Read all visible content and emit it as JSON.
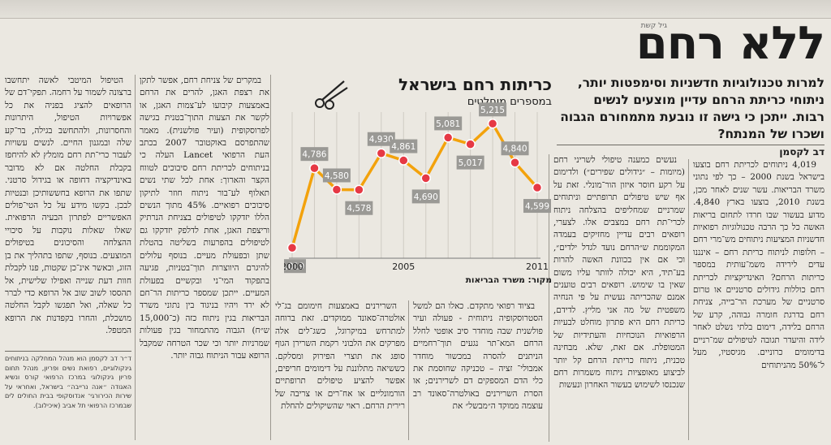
{
  "article": {
    "kicker": "גיל קשת",
    "headline": "ללא רחם",
    "deck": "למרות טכנולוגיות חדשניות וסימפטות יותר, ניתוחי כריתת הרחם עדיין מוצעים לנשים רבות. ייתכן כי גישה זו נובעת מתמחורם הגבוה ושכרו של המנתח?",
    "byline": "דב לקסמן",
    "columns": [
      "4,019 ניתוחים לכריתת רחם בוצעו בישראל בשנת 2000 – כך לפי נתוני משרד הבריאות. עשר שנים לאחר מכן, בשנת 2010, בוצעו בארץ 4,840. מדוע בעשור שבו חרדו לתחום בריאות האשה כל כך הרבה טכנולוגיות רפואיות חדשניות המציעות ניתוחים מש־מרי רחם – חלופות לניתוח כריתת רחם – אינננו עדים לירידה משמ־עותית במספר כריתות הרחם? האינדיקציות לכריתת רחם כוללות גידולים סרטניים או טרום סרטניים של מערכת הר־בייה, צניחת רחם בדרגת חומרה גבוהה, קרע של הרחם בלידה, דימום בלתי נשלט לאחר לידה והיעדר תגובה לטיפולים שמ־רניים בדימומים כרוניים. מגיסטיו, מעל ל־50% מהניתוחים",
      "נעשים כמענה טיפולי לשריני רחם (מיומות – ״גידולים שפירים״) ולדימום על רקע חוסר איזון הור־מונלי. זאת על אף שיש טיפולים תרופתיים וניתוחים שמרניים שמחליפים בהצלחה ניתוח לכרי־תת רחם במצבים אלו. לצערי, רופאים רבים עדיין מחזיקים בעמדה המקוממת ש״הרחם נועד לגדל ילדים״, וכי אם אין בכוונת האשה להרות בע־תיד, היא יכולה לוותר עליו משום שאין בו שימוש. רופאים רבים טוענים אמנם שהכריתה נעשית על פי הנחיה משפטית של מה אני מליץ. לדידם, כריתת רחם היא פתרון מוחלט לבעיות הרפואיות הנוכחיות והעתידיות של המטופלת. אם זאת, שלא. מבחינה טכנית, ניתוח כריתת הרחם קל יותר לביצוע מאופציות ניתוח משמרות רחם שנכנסו לשימוש בעשור האחרון ונעשות",
      "בציוד רפואי מתקדם. כאלו הם למשל הסטרוסקופיה ניתוחית - פעולה ועיר פולשנית שבה מוחדר סיב אופטי לחלל הרחם המא־תר נגעים תוך־רחמיים הניתנים להסרה במכשור מוחדר אמבולי־ זציה – טכניקה שחוסמת את כלי הדם המספקים דם לשרירנים; או הסרת השרירנים באולטרה־סאונד רב עוצמה ממוקד ה״מבשל״ את",
      "השרירנים באמצעות חימומם בג־לי אולטרה־סאונד ממוקדים. זאת ברוחה למתרחש במיקרוגל, כשג־לים אלה מפרקים את הלבוני רקמת השרירן הגוף סופג את תוצרי הפירוק ומסלקם. כששיאה מתלוננת על דימומים חריפים, אפשר להציע טיפולים תרופתיים הורמונליים או אח־רים או צריבה של רירית הרחם. ראוי שהשיקולים להחלת"
    ],
    "columns2": [
      "במקרים של צניחת רחם, אפשר לתקן את רצפת האגן, להרים את הרחם באמצעות קיבועו לע־צמות האגן, או לקשר את הצעות התוך־בטנית בגישה לפרוסקופית (ועיר פולשנית). מאמר שהתפרסם באוקטובר 2007 בכתב העת הרפואי Lancet העלה כי בניתוחים לכריתת רחם סיבוכים לטווח הקצר והארוך: אחת לכל שתי נשים תאלוף לע־בור ניתוח חוזר לתיקון סיבוכים רפואיים. 45% מתוך הנשים הללו יזדקקו לטיפולים בצניחת הנרתיק וריצפת האגן, אחת לדלפק יזדקקו גם לטיפולים בהפרעות בשליטה בהטלת שתן ובפעולת מעיים. בנוסף עלולים להיגרם היווצרות תוך־בטניות, פגיעה בתפקוד המי־ני ובקשיים בפעולת המעיים. ייתכן שמספר כריתות הר־חם לא ירד ויהיו בניגוד בין נתוני משרד הבריאות בגין ניתוח כזה (כ־15,000 ש״ח) הגבוה מהתמחור בגין פעולות שמרניות יותר וכי שכר הטרחה שמקבל הרופא עבור הניתוח גבוה יותר.",
      "הטיפול המיטבי לאשה יתחשבו ברצונה לשמור על רחמה. תפקי־דם של הרופאים להציג בפניה את כל אפשרויות הטיפול, היתרונות והחסרונות, ולהתחשב בגילה, בר־קע שלה ובמגנון החיים. לנשים עשויות לעבור כרי־תת רחם מומלץ לא להיחפז בקבלת החלטה אם לא מדובר באינדיקציה דחופה או בגידול סרטני. שתפו את הרופא בחששותיכן ובנטיות לבכן. בקשו מידע על כל הטי־פולים האפשריים לפתרון הבעיה הרפואית. שאלו שאלות נוקבות על סיכויי ההצלחה והסיכונים בטיפולים המוצעים. בנוסף, שתפו בתהליך את בן הזוג, וכאשר אינ־כן שקטות, פנו לקבלת חוות דעת שנייה ואפילו שלישית, אל תהססו לשוב שוב אל הרופא כדי לברר כל שאלה, ואל תפגשו לקבל החלטה מושכלת, והחרו בקפדנות את הרופא המטפל."
    ],
    "footnote": "ד״ר דב לקסמן הוא מנהל המחלקה בניתוחים גינקולוגיים, רפואת נשים ופריון, מנהל תחום פריון גינקולוגי במרכז הרפואי קורס ונשיא האגודה ״אנה נרייבה״ בישראל, ואחראי על שירות הכירורגי־ אנדוסקופי בבית החולים לים שבמרכז הרפואי תל אביב (איכילוב)."
  },
  "chart": {
    "title": "כריתות רחם בישראל",
    "subtitle": "במספרים מוחלטים",
    "source": "מקור: משרד הבריאות",
    "line_color": "#f3a20c",
    "point_color": "#e63945",
    "label_bg": "#9a9995"
  },
  "chart_data": {
    "type": "line",
    "title": "כריתות רחם בישראל",
    "subtitle": "במספרים מוחלטים",
    "x": [
      2000,
      2001,
      2002,
      2003,
      2004,
      2005,
      2006,
      2007,
      2008,
      2009,
      2010,
      2011
    ],
    "x_tick_labels": [
      "2000",
      "2005",
      "2011"
    ],
    "values": [
      4019,
      4786,
      4580,
      4578,
      4930,
      4861,
      4690,
      5081,
      5017,
      5215,
      4840,
      4599
    ],
    "xlim": [
      2000,
      2011
    ],
    "ylim": [
      3950,
      5280
    ],
    "grid": "vertical",
    "legend": "none"
  }
}
